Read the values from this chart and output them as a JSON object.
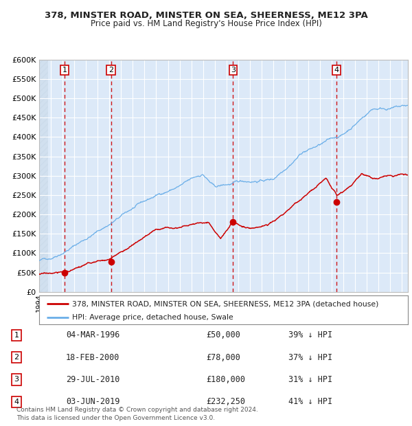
{
  "title1": "378, MINSTER ROAD, MINSTER ON SEA, SHEERNESS, ME12 3PA",
  "title2": "Price paid vs. HM Land Registry's House Price Index (HPI)",
  "bg_color": "#ffffff",
  "plot_bg_color": "#dce9f8",
  "hpi_color": "#6aaee8",
  "price_color": "#cc0000",
  "vline_color": "#cc0000",
  "ylim": [
    0,
    600000
  ],
  "yticks": [
    0,
    50000,
    100000,
    150000,
    200000,
    250000,
    300000,
    350000,
    400000,
    450000,
    500000,
    550000,
    600000
  ],
  "sales": [
    {
      "num": 1,
      "date_x": 1996.17,
      "price": 50000,
      "label": "04-MAR-1996",
      "price_str": "£50,000",
      "hpi_pct": "39% ↓ HPI"
    },
    {
      "num": 2,
      "date_x": 2000.13,
      "price": 78000,
      "label": "18-FEB-2000",
      "price_str": "£78,000",
      "hpi_pct": "37% ↓ HPI"
    },
    {
      "num": 3,
      "date_x": 2010.57,
      "price": 180000,
      "label": "29-JUL-2010",
      "price_str": "£180,000",
      "hpi_pct": "31% ↓ HPI"
    },
    {
      "num": 4,
      "date_x": 2019.42,
      "price": 232250,
      "label": "03-JUN-2019",
      "price_str": "£232,250",
      "hpi_pct": "41% ↓ HPI"
    }
  ],
  "legend_red_label": "378, MINSTER ROAD, MINSTER ON SEA, SHEERNESS, ME12 3PA (detached house)",
  "legend_blue_label": "HPI: Average price, detached house, Swale",
  "footer": "Contains HM Land Registry data © Crown copyright and database right 2024.\nThis data is licensed under the Open Government Licence v3.0.",
  "xmin": 1994.0,
  "xmax": 2025.5
}
